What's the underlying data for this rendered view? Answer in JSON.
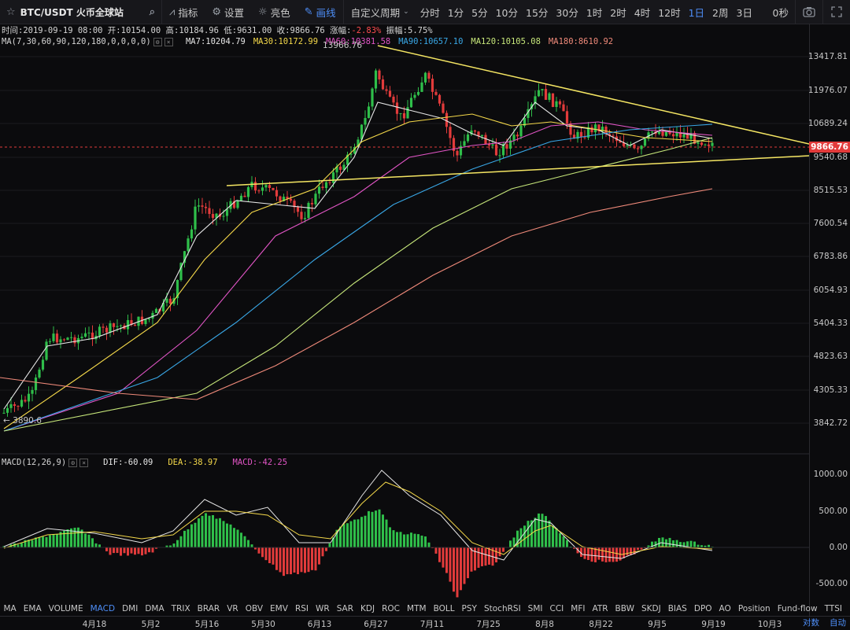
{
  "toolbar": {
    "pair": "BTC/USDT 火币全球站",
    "indicators": "指标",
    "settings": "设置",
    "theme": "亮色",
    "draw": "画线",
    "custom_period": "自定义周期",
    "periods": [
      "分时",
      "1分",
      "5分",
      "10分",
      "15分",
      "30分",
      "1时",
      "2时",
      "4时",
      "12时",
      "1日",
      "2周",
      "3日"
    ],
    "active_period": "1日",
    "seconds": "0秒"
  },
  "info": {
    "time": "时间:2019-09-19 08:00",
    "open": "开:10154.00",
    "high": "高:10184.96",
    "low": "低:9631.00",
    "close": "收:9866.76",
    "change_label": "涨幅:",
    "change": "-2.83%",
    "amplitude": "振幅:5.75%"
  },
  "ma": {
    "label": "MA(7,30,60,90,120,180,0,0,0,0)",
    "items": [
      {
        "text": "MA7:10204.79",
        "color": "#e6e6e6"
      },
      {
        "text": "MA30:10172.99",
        "color": "#f5d94a"
      },
      {
        "text": "MA60:10381.58",
        "color": "#e255c6"
      },
      {
        "text": "MA90:10657.10",
        "color": "#39a7e6"
      },
      {
        "text": "MA120:10105.08",
        "color": "#c6e67a"
      },
      {
        "text": "MA180:8610.92",
        "color": "#f08a7a"
      }
    ]
  },
  "macd": {
    "label": "MACD(12,26,9)",
    "dif": "DIF:-60.09",
    "dea": "DEA:-38.97",
    "macd": "MACD:-42.25"
  },
  "price_axis": [
    "13417.81",
    "11976.07",
    "10689.24",
    "9540.68",
    "8515.53",
    "7600.54",
    "6783.86",
    "6054.93",
    "5404.33",
    "4823.63",
    "4305.33",
    "3842.72"
  ],
  "current_price": "9866.76",
  "high_marker": "13966.76",
  "low_marker": "3890.6",
  "macd_axis": [
    "1000.00",
    "500.00",
    "0.00",
    "-500.00"
  ],
  "indicators": [
    "MA",
    "EMA",
    "VOLUME",
    "MACD",
    "DMI",
    "DMA",
    "TRIX",
    "BRAR",
    "VR",
    "OBV",
    "EMV",
    "RSI",
    "WR",
    "SAR",
    "KDJ",
    "ROC",
    "MTM",
    "BOLL",
    "PSY",
    "StochRSI",
    "SMI",
    "CCI",
    "MFI",
    "ATR",
    "BBW",
    "SKDJ",
    "BIAS",
    "DPO",
    "AO",
    "Position",
    "Fund-flow",
    "TTSI"
  ],
  "active_indicator": "MACD",
  "dates": [
    "4月18",
    "5月2",
    "5月16",
    "5月30",
    "6月13",
    "6月27",
    "7月11",
    "7月25",
    "8月8",
    "8月22",
    "9月5",
    "9月19",
    "10月3"
  ],
  "corner": [
    "对数",
    "自动"
  ],
  "colors": {
    "up": "#2fbf4a",
    "down": "#e23b3b",
    "trend": "#f5e663"
  }
}
